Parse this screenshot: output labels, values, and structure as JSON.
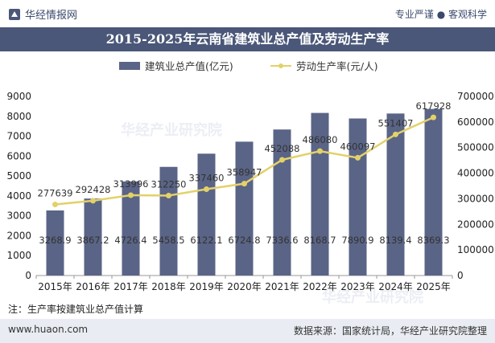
{
  "header": {
    "brand": "华经情报网",
    "tagline": "专业严谨 ● 客观科学"
  },
  "chart_data": {
    "type": "bar+line",
    "title": "2015-2025年云南省建筑业总产值及劳动生产率",
    "categories": [
      "2015年",
      "2016年",
      "2017年",
      "2018年",
      "2019年",
      "2020年",
      "2021年",
      "2022年",
      "2023年",
      "2024年",
      "2025年"
    ],
    "series": [
      {
        "name": "建筑业总产值(亿元)",
        "type": "bar",
        "axis": "left",
        "color": "#5a6486",
        "values": [
          3268.9,
          3867.2,
          4726.4,
          5458.5,
          6122.1,
          6724.8,
          7336.6,
          8168.7,
          7890.9,
          8139.4,
          8369.3
        ],
        "labels": [
          "3268.9",
          "3867.2",
          "4726.4",
          "5458.5",
          "6122.1",
          "6724.8",
          "7336.6",
          "8168.7",
          "7890.9",
          "8139.4",
          "8369.3"
        ]
      },
      {
        "name": "劳动生产率(元/人)",
        "type": "line",
        "axis": "right",
        "color": "#e3d16a",
        "values": [
          277639,
          292428,
          313996,
          312250,
          337460,
          358947,
          452088,
          486080,
          460097,
          551407,
          617928
        ],
        "labels": [
          "277639",
          "292428",
          "313996",
          "312250",
          "337460",
          "358947",
          "452088",
          "486080",
          "460097",
          "551407",
          "617928"
        ]
      }
    ],
    "y_left": {
      "min": 0,
      "max": 9000,
      "ticks": [
        "0",
        "1000",
        "2000",
        "3000",
        "4000",
        "5000",
        "6000",
        "7000",
        "8000",
        "9000"
      ]
    },
    "y_right": {
      "min": 0,
      "max": 700000,
      "ticks": [
        "0",
        "100000",
        "200000",
        "300000",
        "400000",
        "500000",
        "600000",
        "700000"
      ]
    },
    "legend_position": "top-center"
  },
  "footnote": "注：生产率按建筑业总产值计算",
  "footer": {
    "url": "www.huaon.com",
    "source": "数据来源：国家统计局，华经产业研究院整理"
  },
  "watermarks": [
    "华经产业研究院",
    "华经产业研究院"
  ]
}
